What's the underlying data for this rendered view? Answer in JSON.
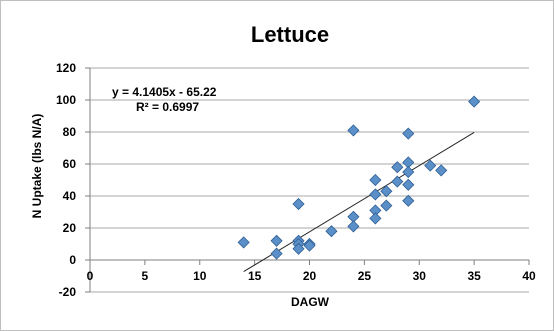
{
  "chart_data": {
    "type": "scatter",
    "title": "Lettuce",
    "xlabel": "DAGW",
    "ylabel": "N Uptake (lbs N/A)",
    "xlim": [
      0,
      40
    ],
    "ylim": [
      -20,
      120
    ],
    "xticks": [
      0,
      5,
      10,
      15,
      20,
      25,
      30,
      35,
      40
    ],
    "yticks": [
      -20,
      0,
      20,
      40,
      60,
      80,
      100,
      120
    ],
    "grid": "horizontal",
    "legend": "none",
    "marker_color": "#5b8fc7",
    "marker_edge": "#2f5f95",
    "series": [
      {
        "marker": "diamond",
        "points": [
          {
            "x": 14,
            "y": 11
          },
          {
            "x": 17,
            "y": 12
          },
          {
            "x": 17,
            "y": 4
          },
          {
            "x": 19,
            "y": 35
          },
          {
            "x": 19,
            "y": 12
          },
          {
            "x": 19,
            "y": 10
          },
          {
            "x": 19,
            "y": 7
          },
          {
            "x": 20,
            "y": 10
          },
          {
            "x": 20,
            "y": 9
          },
          {
            "x": 22,
            "y": 18
          },
          {
            "x": 24,
            "y": 81
          },
          {
            "x": 24,
            "y": 27
          },
          {
            "x": 24,
            "y": 21
          },
          {
            "x": 26,
            "y": 50
          },
          {
            "x": 26,
            "y": 41
          },
          {
            "x": 26,
            "y": 31
          },
          {
            "x": 26,
            "y": 26
          },
          {
            "x": 27,
            "y": 43
          },
          {
            "x": 27,
            "y": 34
          },
          {
            "x": 28,
            "y": 58
          },
          {
            "x": 28,
            "y": 49
          },
          {
            "x": 29,
            "y": 79
          },
          {
            "x": 29,
            "y": 61
          },
          {
            "x": 29,
            "y": 55
          },
          {
            "x": 29,
            "y": 47
          },
          {
            "x": 29,
            "y": 37
          },
          {
            "x": 31,
            "y": 59
          },
          {
            "x": 32,
            "y": 56
          },
          {
            "x": 35,
            "y": 99
          }
        ]
      }
    ],
    "trendline": {
      "type": "linear",
      "slope": 4.1405,
      "intercept": -65.22,
      "x_range": [
        14,
        35
      ],
      "equation_label": "y = 4.1405x - 65.22",
      "r2_label": "R² = 0.6997"
    }
  }
}
